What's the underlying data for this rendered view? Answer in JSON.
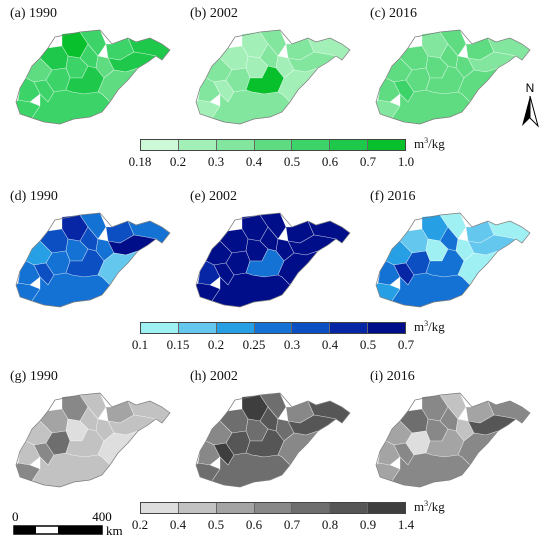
{
  "rows": [
    {
      "id": "green",
      "panels": [
        {
          "label": "(a) 1990",
          "palette": [
            6,
            5,
            4,
            4,
            5,
            3,
            4,
            4,
            3,
            5,
            4,
            4,
            4,
            5,
            3,
            4,
            4
          ]
        },
        {
          "label": "(b) 2002",
          "palette": [
            1,
            1,
            2,
            2,
            1,
            2,
            1,
            2,
            1,
            2,
            2,
            1,
            2,
            6,
            1,
            1,
            2
          ]
        },
        {
          "label": "(c) 2016",
          "palette": [
            2,
            3,
            3,
            3,
            2,
            3,
            3,
            3,
            3,
            2,
            3,
            4,
            3,
            3,
            3,
            2,
            3
          ]
        }
      ],
      "legend": {
        "colors": [
          "#ccfad9",
          "#a2f0b8",
          "#82e69e",
          "#5fdc82",
          "#3cd468",
          "#1ec84b",
          "#08bf2c"
        ],
        "ticks": [
          "0.18",
          "0.2",
          "0.3",
          "0.4",
          "0.5",
          "0.6",
          "0.7",
          "1.0"
        ],
        "unit": "m",
        "unit_sup": "3",
        "unit_rest": "/kg"
      }
    },
    {
      "id": "blue",
      "panels": [
        {
          "label": "(d) 1990",
          "palette": [
            5,
            4,
            3,
            4,
            3,
            2,
            3,
            4,
            3,
            6,
            3,
            4,
            3,
            4,
            1,
            3,
            3
          ]
        },
        {
          "label": "(e) 2002",
          "palette": [
            6,
            6,
            6,
            6,
            6,
            6,
            6,
            6,
            6,
            6,
            5,
            6,
            6,
            3,
            6,
            6,
            6
          ]
        },
        {
          "label": "(f) 2016",
          "palette": [
            2,
            1,
            0,
            1,
            0,
            2,
            0,
            3,
            0,
            1,
            3,
            5,
            4,
            3,
            0,
            2,
            3
          ]
        }
      ],
      "legend": {
        "colors": [
          "#9ff0f3",
          "#64c7ee",
          "#269fe4",
          "#1372d3",
          "#0b4fc2",
          "#0626a6",
          "#000e8a"
        ],
        "ticks": [
          "0.1",
          "0.15",
          "0.2",
          "0.25",
          "0.3",
          "0.4",
          "0.5",
          "0.7"
        ],
        "unit": "m",
        "unit_sup": "3",
        "unit_rest": "/kg"
      }
    },
    {
      "id": "gray",
      "panels": [
        {
          "label": "(g) 1990",
          "palette": [
            3,
            2,
            1,
            2,
            1,
            1,
            0,
            1,
            1,
            1,
            1,
            3,
            4,
            1,
            0,
            3,
            1
          ]
        },
        {
          "label": "(h) 2002",
          "palette": [
            6,
            4,
            4,
            3,
            5,
            3,
            4,
            5,
            4,
            5,
            3,
            6,
            5,
            5,
            3,
            4,
            4
          ]
        },
        {
          "label": "(i) 2016",
          "palette": [
            3,
            4,
            1,
            2,
            3,
            2,
            3,
            3,
            1,
            5,
            2,
            3,
            0,
            2,
            3,
            2,
            3
          ]
        }
      ],
      "legend": {
        "colors": [
          "#dedede",
          "#c2c2c2",
          "#a4a4a4",
          "#888888",
          "#6e6e6e",
          "#565656",
          "#3e3e3e"
        ],
        "ticks": [
          "0.2",
          "0.4",
          "0.5",
          "0.6",
          "0.7",
          "0.8",
          "0.9",
          "1.4"
        ],
        "unit": "m",
        "unit_sup": "3",
        "unit_rest": "/kg"
      }
    }
  ],
  "north_arrow": {
    "letter": "N"
  },
  "scale_bar": {
    "start": "0",
    "end": "400",
    "unit": "km"
  }
}
